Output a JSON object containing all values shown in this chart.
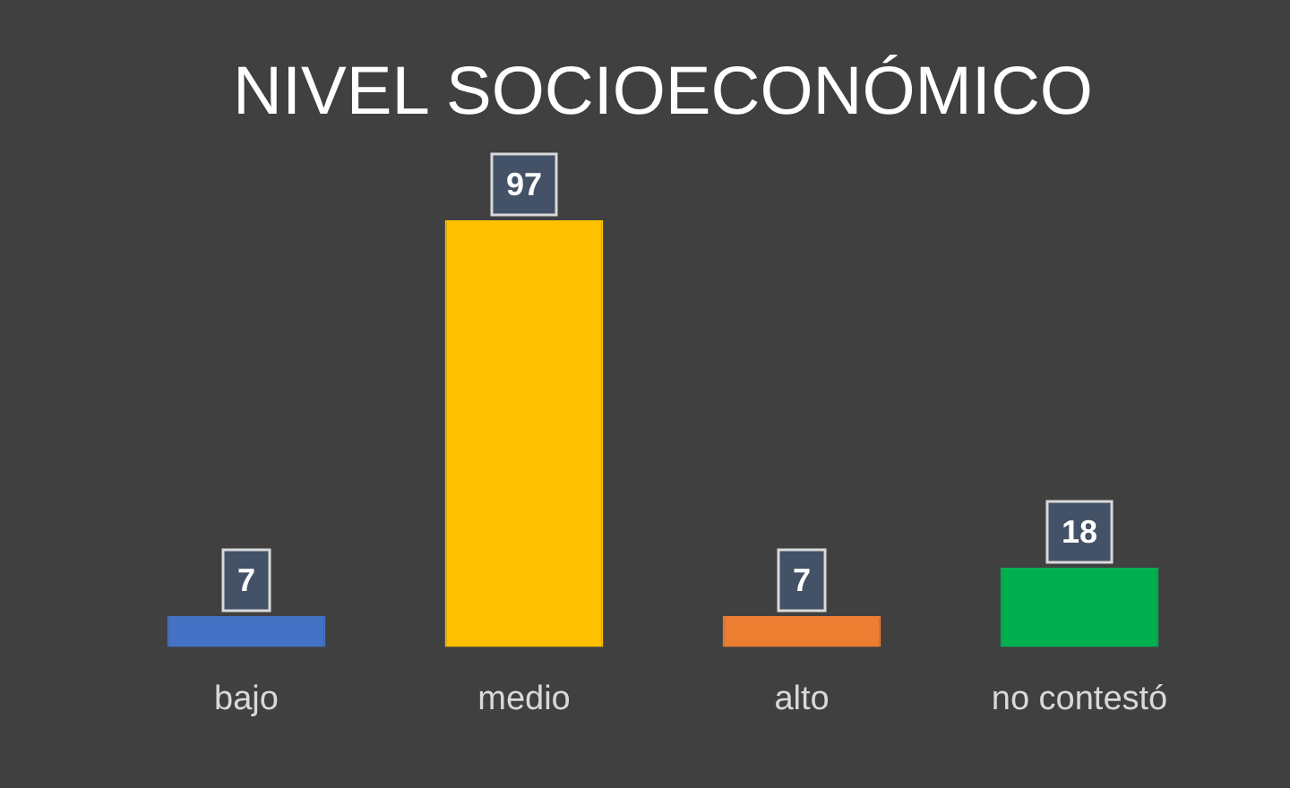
{
  "chart_data": {
    "type": "bar",
    "title": "NIVEL SOCIOECONÓMICO",
    "categories": [
      "bajo",
      "medio",
      "alto",
      "no contestó"
    ],
    "values": [
      7,
      97,
      7,
      18
    ],
    "colors": [
      "#4472c4",
      "#ffc000",
      "#ed7d31",
      "#00b050"
    ],
    "data_labels": true,
    "grid": false,
    "legend": false
  }
}
